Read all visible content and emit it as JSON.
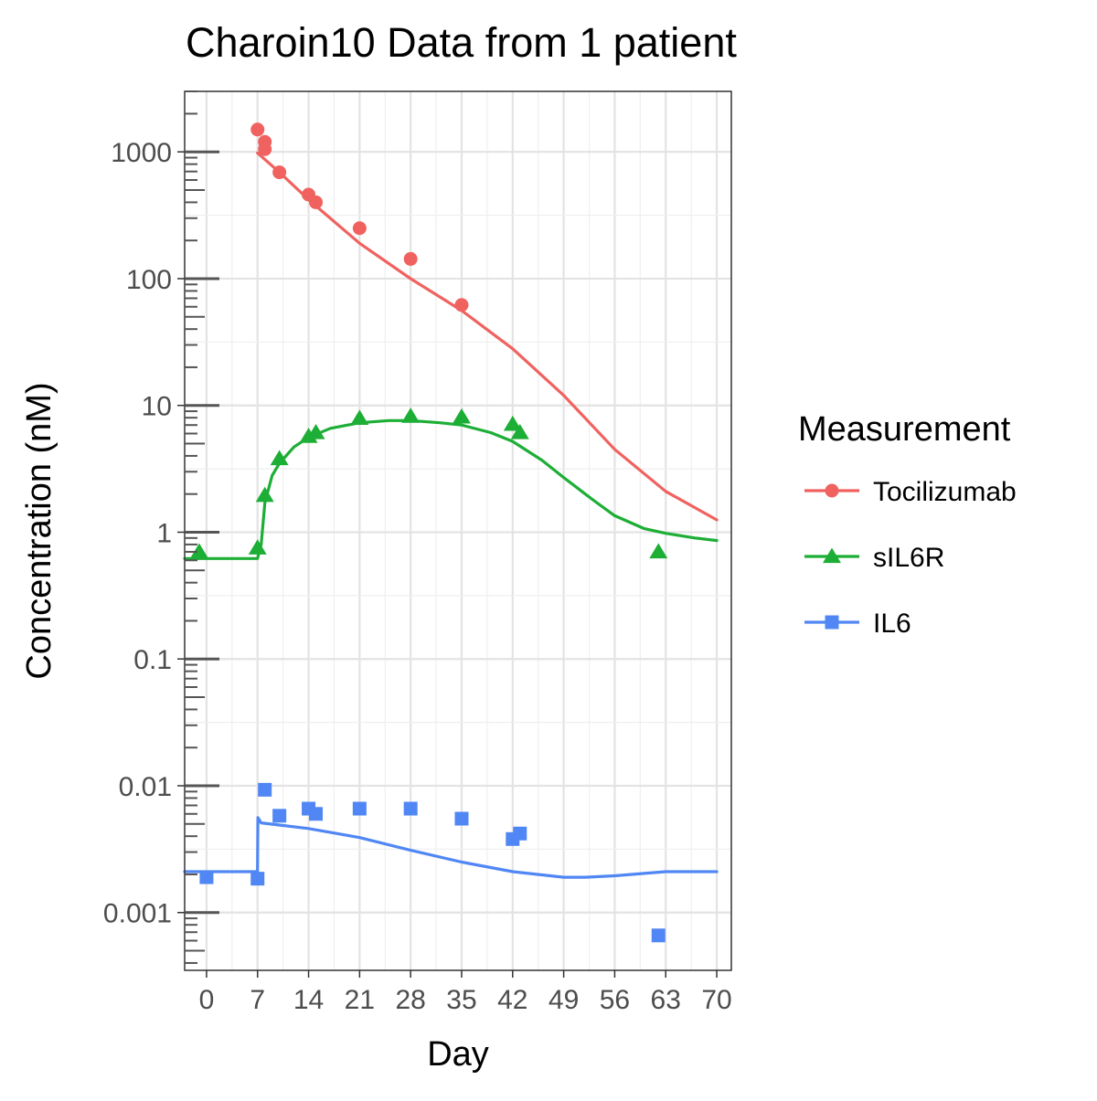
{
  "chart_data": {
    "type": "scatter",
    "title": "Charoin10 Data from 1 patient",
    "xlabel": "Day",
    "ylabel": "Concentration (nM)",
    "xlim": [
      -3,
      72
    ],
    "ylim": [
      0.00035,
      3000
    ],
    "y_scale": "log",
    "grid": true,
    "legend_position": "right",
    "legend_title": "Measurement",
    "x_ticks": [
      0,
      7,
      14,
      21,
      28,
      35,
      42,
      49,
      56,
      63,
      70
    ],
    "x_tick_labels": [
      "0",
      "7",
      "14",
      "21",
      "28",
      "35",
      "42",
      "49",
      "56",
      "63",
      "70"
    ],
    "y_ticks": [
      0.001,
      0.01,
      0.1,
      1,
      10,
      100,
      1000
    ],
    "y_tick_labels": [
      "0.001",
      "0.01",
      "0.1",
      "1",
      "10",
      "100",
      "1000"
    ],
    "series": [
      {
        "name": "Tocilizumab",
        "color": "#F0625F",
        "marker": "circle",
        "points": [
          [
            7,
            1500
          ],
          [
            8,
            1200
          ],
          [
            8,
            1050
          ],
          [
            10,
            690
          ],
          [
            14,
            460
          ],
          [
            15,
            400
          ],
          [
            21,
            250
          ],
          [
            28,
            143
          ],
          [
            35,
            62
          ]
        ],
        "fit": [
          [
            7,
            980
          ],
          [
            10,
            690
          ],
          [
            14,
            420
          ],
          [
            21,
            190
          ],
          [
            28,
            100
          ],
          [
            35,
            56
          ],
          [
            42,
            28
          ],
          [
            49,
            12
          ],
          [
            56,
            4.5
          ],
          [
            63,
            2.1
          ],
          [
            70,
            1.25
          ]
        ]
      },
      {
        "name": "sIL6R",
        "color": "#1DAE36",
        "marker": "triangle",
        "points": [
          [
            -1,
            0.7
          ],
          [
            7,
            0.75
          ],
          [
            8,
            1.95
          ],
          [
            10,
            3.8
          ],
          [
            14,
            5.7
          ],
          [
            15,
            6.1
          ],
          [
            21,
            7.9
          ],
          [
            28,
            8.2
          ],
          [
            35,
            8.1
          ],
          [
            42,
            7.1
          ],
          [
            43,
            6.1
          ],
          [
            62,
            0.7
          ]
        ],
        "fit": [
          [
            -3,
            0.62
          ],
          [
            7,
            0.62
          ],
          [
            7.5,
            0.8
          ],
          [
            8,
            1.7
          ],
          [
            9,
            2.8
          ],
          [
            10,
            3.5
          ],
          [
            12,
            4.7
          ],
          [
            14,
            5.6
          ],
          [
            17,
            6.6
          ],
          [
            21,
            7.3
          ],
          [
            25,
            7.6
          ],
          [
            28,
            7.6
          ],
          [
            32,
            7.3
          ],
          [
            35,
            7.0
          ],
          [
            39,
            6.1
          ],
          [
            42,
            5.2
          ],
          [
            46,
            3.7
          ],
          [
            49,
            2.7
          ],
          [
            53,
            1.8
          ],
          [
            56,
            1.35
          ],
          [
            60,
            1.07
          ],
          [
            63,
            0.98
          ],
          [
            67,
            0.9
          ],
          [
            70,
            0.86
          ]
        ]
      },
      {
        "name": "IL6",
        "color": "#5087F4",
        "marker": "square",
        "points": [
          [
            0,
            0.0019
          ],
          [
            7,
            0.00185
          ],
          [
            8,
            0.0093
          ],
          [
            10,
            0.0058
          ],
          [
            14,
            0.0066
          ],
          [
            15,
            0.006
          ],
          [
            21,
            0.0066
          ],
          [
            28,
            0.0066
          ],
          [
            35,
            0.0055
          ],
          [
            42,
            0.0038
          ],
          [
            43,
            0.0042
          ],
          [
            62,
            0.00066
          ]
        ],
        "fit": [
          [
            -3,
            0.0021
          ],
          [
            7,
            0.0021
          ],
          [
            7.05,
            0.0056
          ],
          [
            7.5,
            0.0051
          ],
          [
            10,
            0.0049
          ],
          [
            14,
            0.0046
          ],
          [
            21,
            0.0039
          ],
          [
            28,
            0.0031
          ],
          [
            35,
            0.0025
          ],
          [
            42,
            0.0021
          ],
          [
            49,
            0.0019
          ],
          [
            52,
            0.0019
          ],
          [
            56,
            0.00195
          ],
          [
            63,
            0.0021
          ],
          [
            70,
            0.0021
          ]
        ]
      }
    ]
  }
}
